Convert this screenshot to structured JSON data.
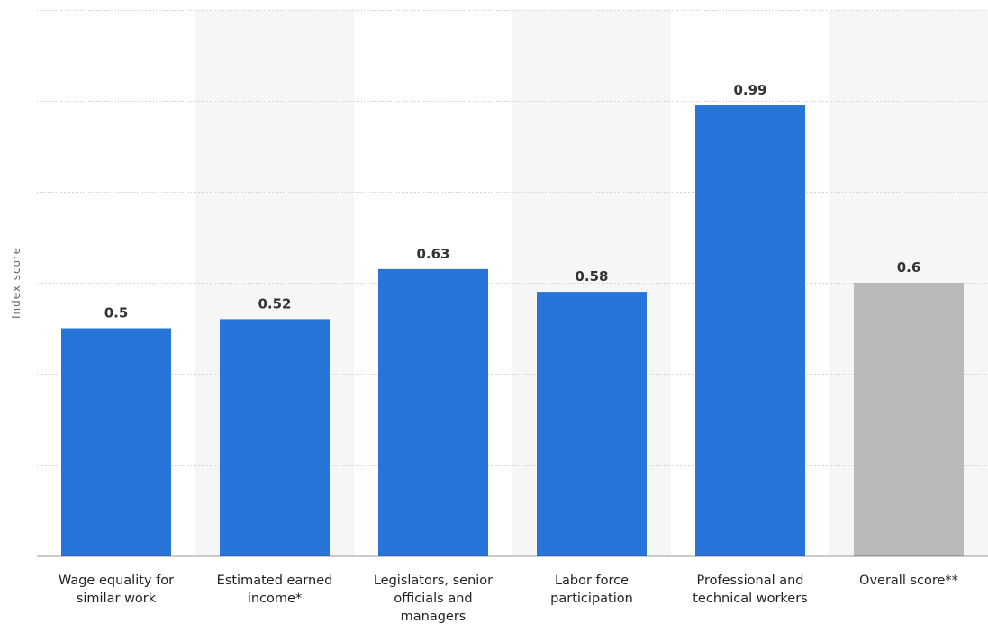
{
  "chart_data": {
    "type": "bar",
    "ylabel": "Index score",
    "xlabel": "",
    "ylim": [
      0,
      1.2
    ],
    "grid": true,
    "categories": [
      [
        "Wage equality for",
        "similar work"
      ],
      [
        "Estimated earned",
        "income*"
      ],
      [
        "Legislators, senior",
        "officials and",
        "managers"
      ],
      [
        "Labor force",
        "participation"
      ],
      [
        "Professional and",
        "technical workers"
      ],
      [
        "Overall score**"
      ]
    ],
    "values": [
      0.5,
      0.52,
      0.63,
      0.58,
      0.99,
      0.6
    ],
    "value_labels": [
      "0.5",
      "0.52",
      "0.63",
      "0.58",
      "0.99",
      "0.6"
    ],
    "bar_colors": [
      "#2775d9",
      "#2775d9",
      "#2775d9",
      "#2775d9",
      "#2775d9",
      "#b9b9b9"
    ],
    "band_color": "#f6f6f6",
    "grid_color": "#c9c9c9",
    "axis_color": "#333333"
  }
}
